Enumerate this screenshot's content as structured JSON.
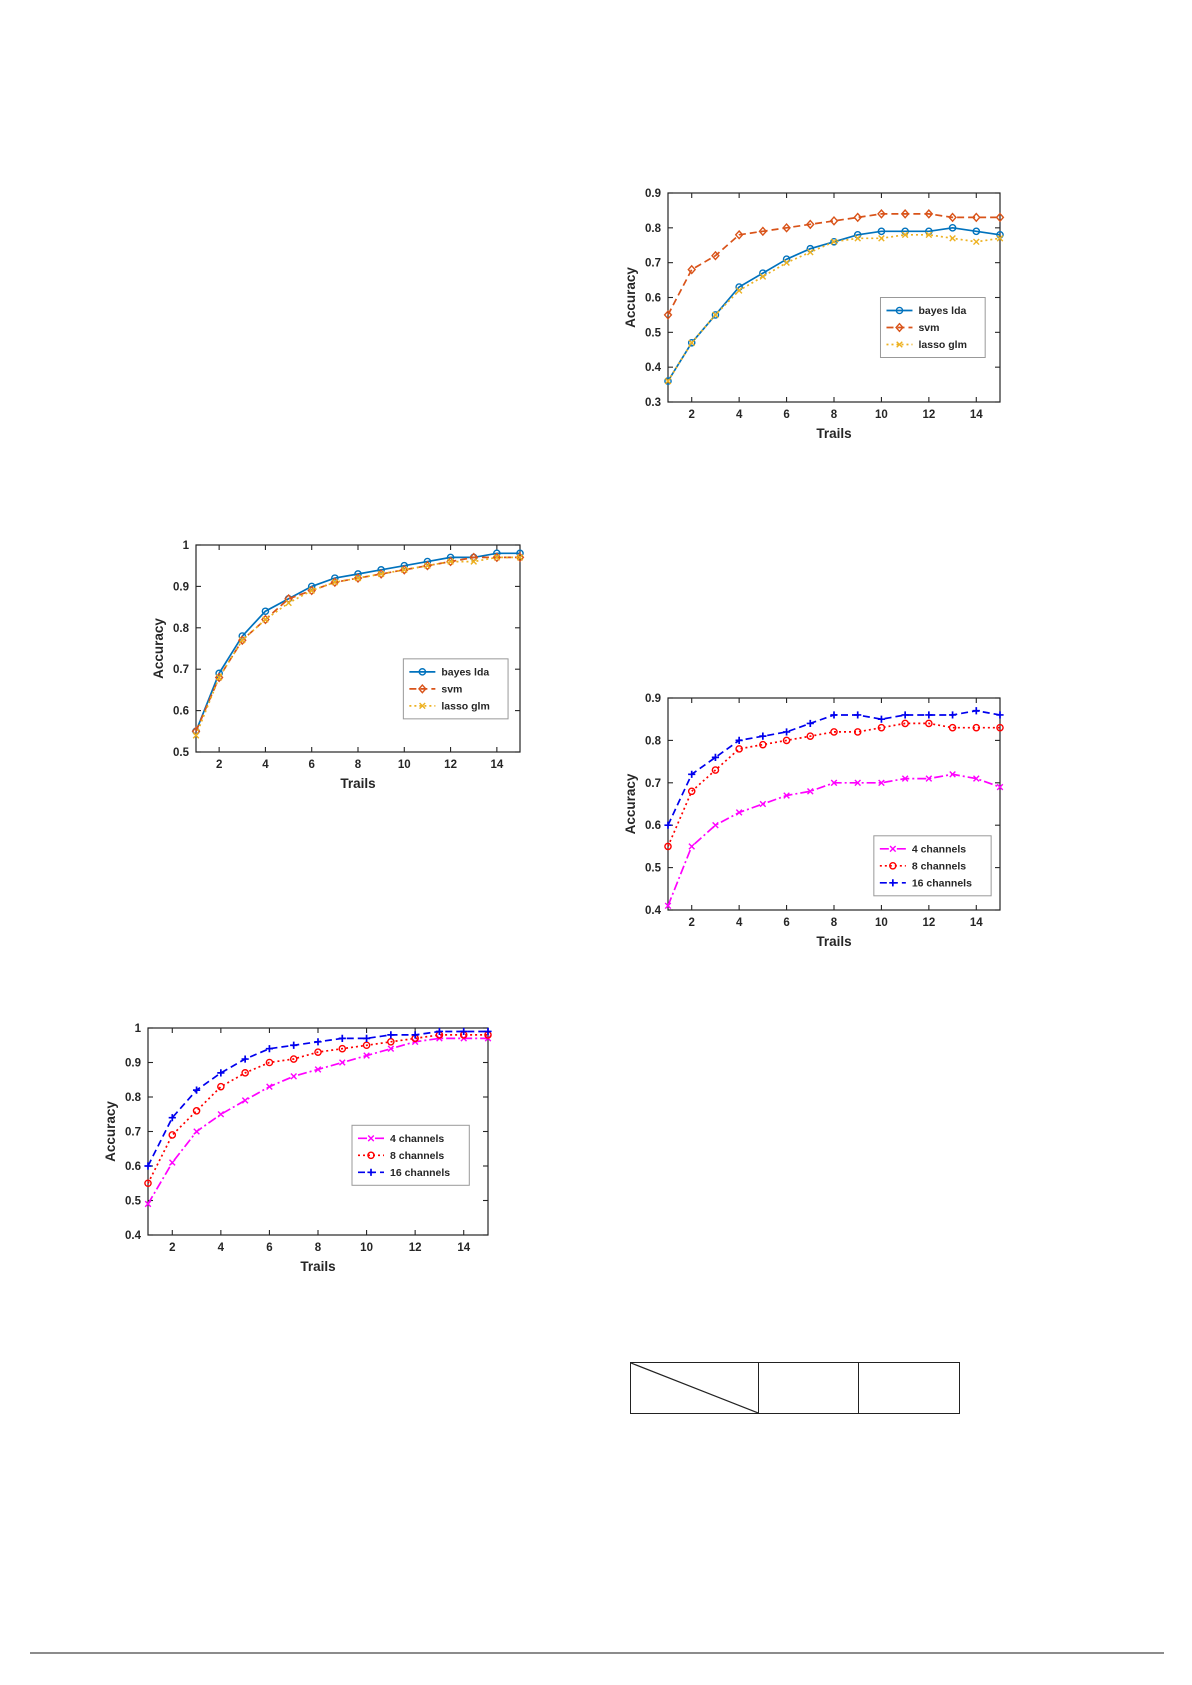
{
  "page": {
    "background": "#ffffff"
  },
  "chart_data": [
    {
      "type": "line",
      "title": "",
      "xlabel": "Trails",
      "ylabel": "Accuracy",
      "xlim": [
        1,
        15
      ],
      "ylim": [
        0.3,
        0.9
      ],
      "xticks": [
        2,
        4,
        6,
        8,
        10,
        12,
        14
      ],
      "yticks": [
        0.3,
        0.4,
        0.5,
        0.6,
        0.7,
        0.8,
        0.9
      ],
      "grid": false,
      "x": [
        1,
        2,
        3,
        4,
        5,
        6,
        7,
        8,
        9,
        10,
        11,
        12,
        13,
        14,
        15
      ],
      "legend": {
        "location": "middle-right-inside",
        "fx": 0.64,
        "fy": 0.5
      },
      "series": [
        {
          "name": "bayes lda",
          "color": "#0072BD",
          "line": "solid",
          "marker": "circle",
          "values": [
            0.36,
            0.47,
            0.55,
            0.63,
            0.67,
            0.71,
            0.74,
            0.76,
            0.78,
            0.79,
            0.79,
            0.79,
            0.8,
            0.79,
            0.78
          ]
        },
        {
          "name": "svm",
          "color": "#D95319",
          "line": "dashed",
          "marker": "diamond",
          "values": [
            0.55,
            0.68,
            0.72,
            0.78,
            0.79,
            0.8,
            0.81,
            0.82,
            0.83,
            0.84,
            0.84,
            0.84,
            0.83,
            0.83,
            0.83
          ]
        },
        {
          "name": "lasso glm",
          "color": "#EDB120",
          "line": "dotted",
          "marker": "x",
          "values": [
            0.36,
            0.47,
            0.55,
            0.62,
            0.66,
            0.7,
            0.73,
            0.76,
            0.77,
            0.77,
            0.78,
            0.78,
            0.77,
            0.76,
            0.77
          ]
        }
      ]
    },
    {
      "type": "line",
      "title": "",
      "xlabel": "Trails",
      "ylabel": "Accuracy",
      "xlim": [
        1,
        15
      ],
      "ylim": [
        0.5,
        1.0
      ],
      "xticks": [
        2,
        4,
        6,
        8,
        10,
        12,
        14
      ],
      "yticks": [
        0.5,
        0.6,
        0.7,
        0.8,
        0.9,
        1
      ],
      "grid": false,
      "x": [
        1,
        2,
        3,
        4,
        5,
        6,
        7,
        8,
        9,
        10,
        11,
        12,
        13,
        14,
        15
      ],
      "legend": {
        "location": "middle-right-inside",
        "fx": 0.64,
        "fy": 0.55
      },
      "series": [
        {
          "name": "bayes lda",
          "color": "#0072BD",
          "line": "solid",
          "marker": "circle",
          "values": [
            0.55,
            0.69,
            0.78,
            0.84,
            0.87,
            0.9,
            0.92,
            0.93,
            0.94,
            0.95,
            0.96,
            0.97,
            0.97,
            0.98,
            0.98
          ]
        },
        {
          "name": "svm",
          "color": "#D95319",
          "line": "dashed",
          "marker": "diamond",
          "values": [
            0.55,
            0.68,
            0.77,
            0.82,
            0.87,
            0.89,
            0.91,
            0.92,
            0.93,
            0.94,
            0.95,
            0.96,
            0.97,
            0.97,
            0.97
          ]
        },
        {
          "name": "lasso glm",
          "color": "#EDB120",
          "line": "dotted",
          "marker": "x",
          "values": [
            0.54,
            0.68,
            0.77,
            0.82,
            0.86,
            0.89,
            0.91,
            0.92,
            0.93,
            0.94,
            0.95,
            0.96,
            0.96,
            0.97,
            0.97
          ]
        }
      ]
    },
    {
      "type": "line",
      "title": "",
      "xlabel": "Trails",
      "ylabel": "Accuracy",
      "xlim": [
        1,
        15
      ],
      "ylim": [
        0.4,
        0.9
      ],
      "xticks": [
        2,
        4,
        6,
        8,
        10,
        12,
        14
      ],
      "yticks": [
        0.4,
        0.5,
        0.6,
        0.7,
        0.8,
        0.9
      ],
      "grid": false,
      "x": [
        1,
        2,
        3,
        4,
        5,
        6,
        7,
        8,
        9,
        10,
        11,
        12,
        13,
        14,
        15
      ],
      "legend": {
        "location": "lower-right-inside",
        "fx": 0.62,
        "fy": 0.65
      },
      "series": [
        {
          "name": "4 channels",
          "color": "#FF00FF",
          "line": "dashdot",
          "marker": "x",
          "values": [
            0.41,
            0.55,
            0.6,
            0.63,
            0.65,
            0.67,
            0.68,
            0.7,
            0.7,
            0.7,
            0.71,
            0.71,
            0.72,
            0.71,
            0.69
          ]
        },
        {
          "name": "8 channels",
          "color": "#FF0000",
          "line": "dotted",
          "marker": "circle",
          "values": [
            0.55,
            0.68,
            0.73,
            0.78,
            0.79,
            0.8,
            0.81,
            0.82,
            0.82,
            0.83,
            0.84,
            0.84,
            0.83,
            0.83,
            0.83
          ]
        },
        {
          "name": "16 channels",
          "color": "#0000EE",
          "line": "dashed",
          "marker": "plus",
          "values": [
            0.6,
            0.72,
            0.76,
            0.8,
            0.81,
            0.82,
            0.84,
            0.86,
            0.86,
            0.85,
            0.86,
            0.86,
            0.86,
            0.87,
            0.86
          ]
        }
      ]
    },
    {
      "type": "line",
      "title": "",
      "xlabel": "Trails",
      "ylabel": "Accuracy",
      "xlim": [
        1,
        15
      ],
      "ylim": [
        0.4,
        1.0
      ],
      "xticks": [
        2,
        4,
        6,
        8,
        10,
        12,
        14
      ],
      "yticks": [
        0.4,
        0.5,
        0.6,
        0.7,
        0.8,
        0.9,
        1
      ],
      "grid": false,
      "x": [
        1,
        2,
        3,
        4,
        5,
        6,
        7,
        8,
        9,
        10,
        11,
        12,
        13,
        14,
        15
      ],
      "legend": {
        "location": "middle-right-inside",
        "fx": 0.6,
        "fy": 0.47
      },
      "series": [
        {
          "name": "4 channels",
          "color": "#FF00FF",
          "line": "dashdot",
          "marker": "x",
          "values": [
            0.49,
            0.61,
            0.7,
            0.75,
            0.79,
            0.83,
            0.86,
            0.88,
            0.9,
            0.92,
            0.94,
            0.96,
            0.97,
            0.97,
            0.97
          ]
        },
        {
          "name": "8 channels",
          "color": "#FF0000",
          "line": "dotted",
          "marker": "circle",
          "values": [
            0.55,
            0.69,
            0.76,
            0.83,
            0.87,
            0.9,
            0.91,
            0.93,
            0.94,
            0.95,
            0.96,
            0.97,
            0.98,
            0.98,
            0.98
          ]
        },
        {
          "name": "16 channels",
          "color": "#0000EE",
          "line": "dashed",
          "marker": "plus",
          "values": [
            0.6,
            0.74,
            0.82,
            0.87,
            0.91,
            0.94,
            0.95,
            0.96,
            0.97,
            0.97,
            0.98,
            0.98,
            0.99,
            0.99,
            0.99
          ]
        }
      ]
    }
  ],
  "table": {
    "columns": 3,
    "cells": [
      "",
      "",
      ""
    ],
    "diagonal_cell_index": 0
  },
  "style": {
    "axis_color": "#262626",
    "legend_border": "#999999",
    "footer_rule_color": "#8c8c8c"
  }
}
